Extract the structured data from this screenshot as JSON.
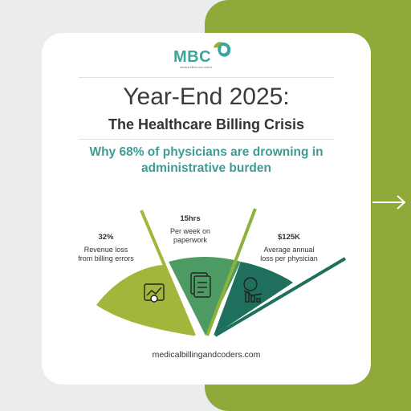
{
  "logo": {
    "text": "MBC",
    "tagline": "medical billers and coders"
  },
  "title": "Year-End 2025:",
  "subtitle": "The Healthcare Billing Crisis",
  "tagline": "Why 68% of physicians are drowning in administrative burden",
  "stats": [
    {
      "value": "32%",
      "label": "Revenue loss from billing errors",
      "icon": "dollar-chart-icon",
      "color": "#a3b63c"
    },
    {
      "value": "15hrs",
      "label": "Per week on paperwork",
      "icon": "documents-icon",
      "color": "#4e9a63"
    },
    {
      "value": "$125K",
      "label": "Average annual loss per physician",
      "icon": "money-bag-decline-icon",
      "color": "#1e6f5c"
    }
  ],
  "footer": "medicalbillingandcoders.com",
  "colors": {
    "accent_green": "#8fa93a",
    "teal": "#3d9b95",
    "card": "#ffffff"
  }
}
